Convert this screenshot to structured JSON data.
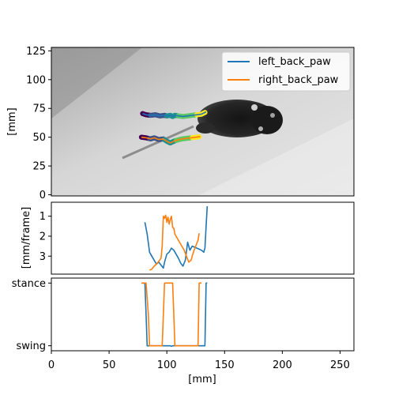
{
  "chart_data": [
    {
      "type": "line",
      "panel": "top",
      "background": "grayscale video frame of a mouse (top view) with paw trajectories colored by time (viridis)",
      "ylabel": "[mm]",
      "ylim": [
        128,
        -1
      ],
      "yticks": [
        "0",
        "25",
        "50",
        "75",
        "100",
        "125"
      ],
      "legend": {
        "placement": "top-right",
        "entries": [
          "left_back_paw",
          "right_back_paw"
        ]
      },
      "series": [
        {
          "name": "left_back_paw",
          "color": "#1f77b4",
          "x": [
            79,
            82,
            86,
            90,
            94,
            98,
            100,
            103,
            105,
            107,
            110,
            114,
            118,
            122,
            126,
            130,
            134
          ],
          "y": [
            70.5,
            69.5,
            69,
            69.5,
            68.5,
            69,
            68.5,
            69,
            68,
            69,
            68.5,
            68,
            68.5,
            69,
            69.5,
            70,
            72
          ]
        },
        {
          "name": "right_back_paw",
          "color": "#ff7f0e",
          "x": [
            78,
            82,
            86,
            89,
            93,
            97,
            100,
            103,
            106,
            109,
            113,
            117,
            121,
            125,
            129
          ],
          "y": [
            50,
            49.5,
            48.5,
            49.5,
            48,
            48.5,
            46.5,
            45,
            46.5,
            47.5,
            48.5,
            49,
            49.5,
            50,
            50.5
          ]
        }
      ]
    },
    {
      "type": "line",
      "panel": "middle",
      "ylabel": "[mm/frame]",
      "ylim": [
        0.3,
        3.9
      ],
      "yticks": [
        "1",
        "2",
        "3"
      ],
      "series": [
        {
          "name": "left_back_paw",
          "color": "#1f77b4",
          "x": [
            81,
            83,
            85,
            87,
            89,
            91,
            93,
            95,
            97,
            98,
            100,
            102,
            104,
            106,
            108,
            110,
            112,
            114,
            116,
            118,
            120,
            122,
            124,
            126,
            128,
            130,
            132,
            133,
            134,
            135
          ],
          "y": [
            1.3,
            1.9,
            2.8,
            3.0,
            3.2,
            3.4,
            3.3,
            3.45,
            3.6,
            3.3,
            2.9,
            2.8,
            2.6,
            2.7,
            2.9,
            3.1,
            3.35,
            3.5,
            3.2,
            2.3,
            2.7,
            2.5,
            2.55,
            2.6,
            2.65,
            2.7,
            2.8,
            2.6,
            1.5,
            0.5
          ]
        },
        {
          "name": "right_back_paw",
          "color": "#ff7f0e",
          "x": [
            85,
            87,
            89,
            91,
            93,
            95,
            96,
            97,
            98,
            99,
            100,
            101,
            102,
            103,
            104,
            105,
            106,
            107,
            109,
            111,
            113,
            115,
            117,
            119,
            121,
            123,
            125,
            127,
            128
          ],
          "y": [
            3.7,
            3.65,
            3.5,
            3.4,
            3.25,
            3.1,
            2.5,
            1.0,
            1.1,
            0.95,
            1.3,
            1.05,
            1.4,
            1.15,
            1.0,
            1.55,
            1.6,
            1.9,
            2.1,
            2.3,
            2.5,
            2.7,
            3.0,
            3.3,
            3.2,
            2.8,
            2.5,
            2.2,
            1.85
          ]
        }
      ]
    },
    {
      "type": "line",
      "panel": "bottom",
      "xlabel": "[mm]",
      "xlim": [
        0,
        262
      ],
      "xticks": [
        "0",
        "50",
        "100",
        "150",
        "200",
        "250"
      ],
      "ylim": [
        -0.08,
        1.08
      ],
      "yticks": [
        "stance",
        "swing"
      ],
      "series": [
        {
          "name": "left_back_paw",
          "color": "#1f77b4",
          "x": [
            79,
            81,
            82,
            83,
            84,
            103,
            104,
            105,
            133,
            134,
            135
          ],
          "y": [
            0,
            0,
            0.5,
            1,
            1,
            1,
            1.01,
            1,
            1,
            0,
            0
          ]
        },
        {
          "name": "right_back_paw",
          "color": "#ff7f0e",
          "x": [
            78,
            82,
            84,
            85,
            96,
            97,
            98,
            105,
            106,
            107,
            108,
            127,
            128,
            130
          ],
          "y": [
            0,
            0,
            0.5,
            1,
            1,
            0.5,
            0,
            0,
            0.5,
            1,
            1,
            1,
            0,
            0
          ]
        }
      ]
    }
  ]
}
